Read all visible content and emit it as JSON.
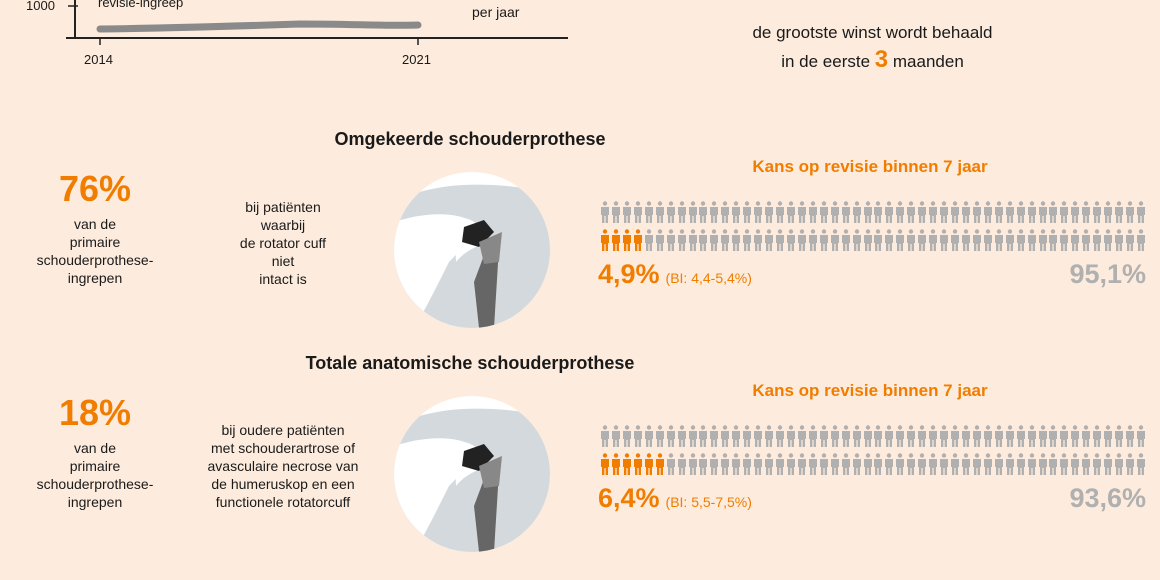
{
  "top_chart": {
    "y_tick": "1000",
    "x_ticks": [
      "2014",
      "2021"
    ],
    "series_label": "revisie-ingreep",
    "unit_label": "per jaar"
  },
  "top_right": {
    "line1": "de grootste winst wordt behaald",
    "line2_pre": "in de eerste",
    "line2_num": "3",
    "line2_post": "maanden"
  },
  "sections": [
    {
      "title": "Omgekeerde schouderprothese",
      "share": "76%",
      "share_text": [
        "van de",
        "primaire",
        "schouderprothese-",
        "ingrepen"
      ],
      "indication": [
        "bij patiënten",
        "waarbij",
        "de rotator cuff",
        "niet",
        "intact is"
      ],
      "chart_title": "Kans op revisie binnen 7 jaar",
      "revision_pct": "4,9%",
      "revision_value": 4.9,
      "ci": "(BI: 4,4-5,4%)",
      "no_revision_pct": "95,1%"
    },
    {
      "title": "Totale anatomische schouderprothese",
      "share": "18%",
      "share_text": [
        "van de",
        "primaire",
        "schouderprothese-",
        "ingrepen"
      ],
      "indication": [
        "bij oudere patiënten",
        "met schouderartrose of",
        "avasculaire necrose van",
        "de humeruskop en een",
        "functionele rotatorcuff"
      ],
      "chart_title": "Kans op revisie binnen 7 jaar",
      "revision_pct": "6,4%",
      "revision_value": 6.4,
      "ci": "(BI: 5,5-7,5%)",
      "no_revision_pct": "93,6%"
    }
  ],
  "colors": {
    "accent": "#f07d00",
    "muted": "#b0b0b0",
    "background": "#fdecdd"
  }
}
